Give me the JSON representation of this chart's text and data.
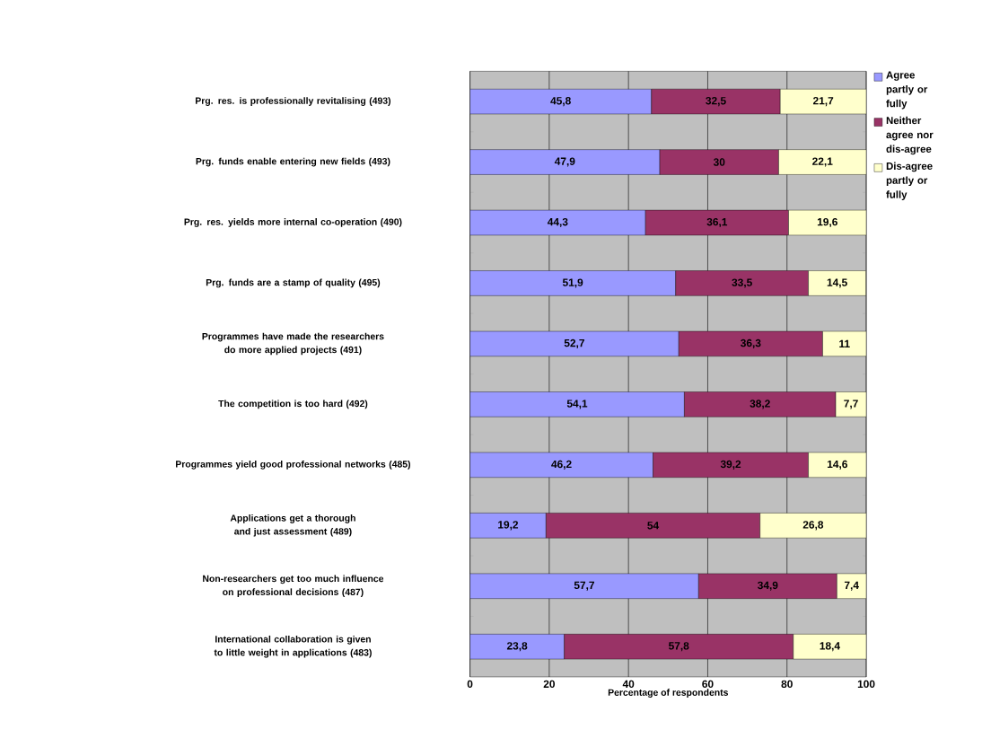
{
  "chart_data": {
    "type": "bar",
    "orientation": "horizontal",
    "stacked": true,
    "xlabel": "Percentage of respondents",
    "categories": [
      "Prg. res. is professionally revitalising (493)",
      "Prg. funds enable entering new fields (493)",
      "Prg. res. yields more internal co-operation (490)",
      "Prg. funds are a stamp of quality (495)",
      "Programmes have made the researchers do more applied projects (491)",
      "The competition is too hard (492)",
      "Programmes yield good professional networks (485)",
      "Applications get a thorough and just assessment (489)",
      "Non-researchers get too much influence on professional decisions (487)",
      "International collaboration is given to little weight in applications (483)"
    ],
    "series": [
      {
        "name": "Agree partly or fully",
        "color": "#9999ff",
        "values": [
          45.8,
          47.9,
          44.3,
          51.9,
          52.7,
          54.1,
          46.2,
          19.2,
          57.7,
          23.8
        ],
        "value_labels": [
          "45,8",
          "47,9",
          "44,3",
          "51,9",
          "52,7",
          "54,1",
          "46,2",
          "19,2",
          "57,7",
          "23,8"
        ]
      },
      {
        "name": "Neither agree nor dis-agree",
        "color": "#993366",
        "values": [
          32.5,
          30,
          36.1,
          33.5,
          36.3,
          38.2,
          39.2,
          54,
          34.9,
          57.8
        ],
        "value_labels": [
          "32,5",
          "30",
          "36,1",
          "33,5",
          "36,3",
          "38,2",
          "39,2",
          "54",
          "34,9",
          "57,8"
        ]
      },
      {
        "name": "Dis-agree partly or fully",
        "color": "#ffffcc",
        "values": [
          21.7,
          22.1,
          19.6,
          14.5,
          11,
          7.7,
          14.6,
          26.8,
          7.4,
          18.4
        ],
        "value_labels": [
          "21,7",
          "22,1",
          "19,6",
          "14,5",
          "11",
          "7,7",
          "14,6",
          "26,8",
          "7,4",
          "18,4"
        ]
      }
    ],
    "xlim": [
      0,
      100
    ],
    "xticks": [
      0,
      20,
      40,
      60,
      80,
      100
    ],
    "grid": "x",
    "legend": "right"
  }
}
